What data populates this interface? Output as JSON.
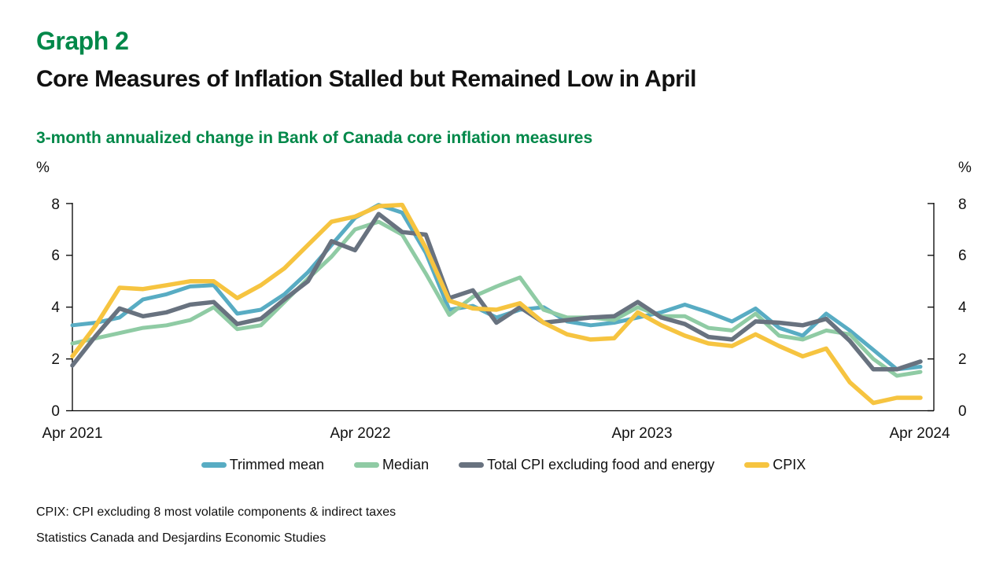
{
  "header": {
    "graph_label": "Graph 2",
    "title": "Core Measures of Inflation Stalled but Remained Low in April",
    "subtitle": "3-month annualized change in Bank of Canada core inflation measures"
  },
  "axis_units": {
    "left": "%",
    "right": "%"
  },
  "chart_data": {
    "type": "line",
    "title": "3-month annualized change in Bank of Canada core inflation measures",
    "x_unit": "month",
    "x_range": [
      "Apr 2021",
      "Apr 2024"
    ],
    "x_tick_labels": [
      "Apr 2021",
      "Apr 2022",
      "Apr 2023",
      "Apr 2024"
    ],
    "y_tick_labels": [
      "0",
      "2",
      "4",
      "6",
      "8"
    ],
    "ylim": [
      0,
      8
    ],
    "ylabel": "%",
    "grid": false,
    "legend_position": "bottom",
    "series": [
      {
        "name": "Trimmed mean",
        "color": "#58acc3",
        "values": [
          3.3,
          3.4,
          3.6,
          4.3,
          4.5,
          4.8,
          4.85,
          3.75,
          3.9,
          4.5,
          5.35,
          6.4,
          7.45,
          7.95,
          7.65,
          6.1,
          3.9,
          4.05,
          3.6,
          3.9,
          4.0,
          3.45,
          3.3,
          3.4,
          3.6,
          3.8,
          4.1,
          3.8,
          3.45,
          3.95,
          3.2,
          2.9,
          3.75,
          3.1,
          2.35,
          1.6,
          1.7
        ]
      },
      {
        "name": "Median",
        "color": "#8fcba4",
        "values": [
          2.6,
          2.8,
          3.0,
          3.2,
          3.3,
          3.5,
          4.0,
          3.15,
          3.3,
          4.2,
          5.1,
          5.95,
          7.0,
          7.3,
          6.8,
          5.3,
          3.7,
          4.4,
          4.8,
          5.15,
          3.9,
          3.6,
          3.6,
          3.5,
          4.0,
          3.65,
          3.65,
          3.2,
          3.1,
          3.75,
          2.9,
          2.75,
          3.1,
          2.95,
          2.0,
          1.35,
          1.5
        ]
      },
      {
        "name": "Total CPI excluding food and energy",
        "color": "#68727f",
        "values": [
          1.75,
          2.9,
          3.95,
          3.65,
          3.8,
          4.1,
          4.2,
          3.35,
          3.55,
          4.3,
          5.0,
          6.55,
          6.2,
          7.6,
          6.9,
          6.8,
          4.35,
          4.65,
          3.4,
          4.0,
          3.4,
          3.5,
          3.6,
          3.65,
          4.2,
          3.6,
          3.35,
          2.85,
          2.75,
          3.45,
          3.4,
          3.3,
          3.55,
          2.7,
          1.6,
          1.6,
          1.9
        ]
      },
      {
        "name": "CPIX",
        "color": "#f6c440",
        "values": [
          2.1,
          3.3,
          4.75,
          4.7,
          4.85,
          5.0,
          5.0,
          4.35,
          4.85,
          5.5,
          6.4,
          7.3,
          7.5,
          7.9,
          7.95,
          6.3,
          4.25,
          3.95,
          3.9,
          4.15,
          3.4,
          2.95,
          2.75,
          2.8,
          3.8,
          3.3,
          2.9,
          2.6,
          2.5,
          2.95,
          2.5,
          2.1,
          2.4,
          1.1,
          0.3,
          0.5,
          0.5
        ]
      }
    ]
  },
  "footnotes": {
    "definition": "CPIX: CPI excluding 8 most volatile components & indirect taxes",
    "source": "Statistics Canada and Desjardins Economic Studies"
  },
  "colors": {
    "accent_green": "#008849",
    "series_trimmed_mean": "#58acc3",
    "series_median": "#8fcba4",
    "series_total_cpi": "#68727f",
    "series_cpix": "#f6c440"
  }
}
